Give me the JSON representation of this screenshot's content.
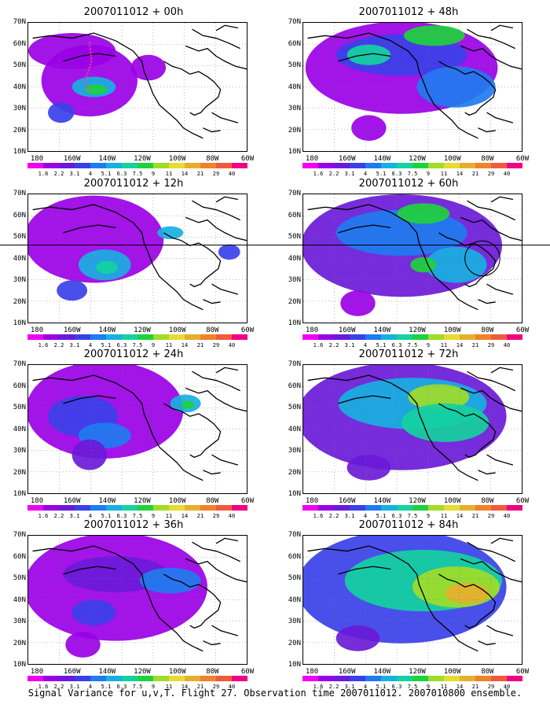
{
  "caption": "Signal Variance for u,v,T. Flight 27. Observation time 2007011012. 2007010800 ensemble.",
  "axes": {
    "lat_labels": [
      "70N",
      "60N",
      "50N",
      "40N",
      "30N",
      "20N",
      "10N"
    ],
    "lon_labels": [
      "180",
      "160W",
      "140W",
      "120W",
      "100W",
      "80W",
      "60W"
    ]
  },
  "colorbar": {
    "labels": [
      "1.6",
      "2.2",
      "3.1",
      "4",
      "5.1",
      "6.3",
      "7.5",
      "9",
      "11",
      "14",
      "21",
      "29",
      "40"
    ],
    "colors": [
      "#f000f0",
      "#9a00e6",
      "#6a1ad8",
      "#3a40e8",
      "#1e7cf0",
      "#18b0e0",
      "#14d2a0",
      "#1ed23c",
      "#a0dc28",
      "#e6dc32",
      "#e6af2d",
      "#f08228",
      "#f05a3c",
      "#f00082"
    ]
  },
  "panels": [
    {
      "title": "2007011012 + 00h",
      "hour": 0
    },
    {
      "title": "2007011012 + 48h",
      "hour": 48
    },
    {
      "title": "2007011012 + 12h",
      "hour": 12
    },
    {
      "title": "2007011012 + 60h",
      "hour": 60
    },
    {
      "title": "2007011012 + 24h",
      "hour": 24
    },
    {
      "title": "2007011012 + 72h",
      "hour": 72
    },
    {
      "title": "2007011012 + 36h",
      "hour": 36
    },
    {
      "title": "2007011012 + 84h",
      "hour": 84
    }
  ]
}
